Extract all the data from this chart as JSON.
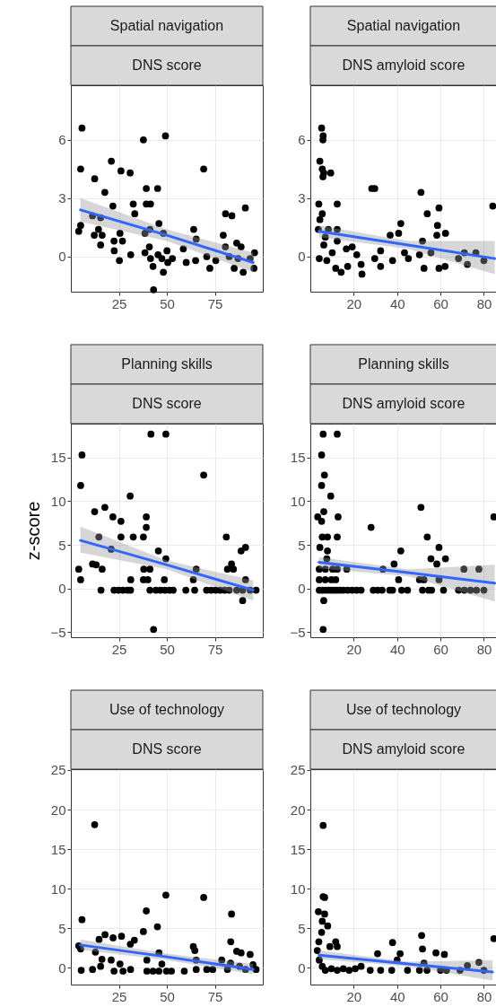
{
  "chart_data": [
    {
      "type": "scatter",
      "title": "Spatial navigation",
      "subtitle": "DNS score",
      "xlim": [
        0,
        100
      ],
      "xticks": [
        25,
        50,
        75
      ],
      "ylim": [
        -1.8,
        8.8
      ],
      "yticks": [
        0,
        3,
        6
      ],
      "grid": true,
      "series": [
        {
          "marker": "circle",
          "color": "#000000",
          "x": [
            5.8,
            5.1,
            37.8,
            49.3,
            21.1,
            12.4,
            26.1,
            30.9,
            39.3,
            45.2,
            69.2,
            17.7,
            21.9,
            32.5,
            39.3,
            41.5,
            33.3,
            11.3,
            15.5,
            80.6,
            83.9,
            90.9,
            5.1,
            4.1,
            14.4,
            12.2,
            16.3,
            25.6,
            22.5,
            26.9,
            15.5,
            22.6,
            25.3,
            31.2,
            38.6,
            41.2,
            45.9,
            48.2,
            40.9,
            38.6,
            41.5,
            42.8,
            45.4,
            47.4,
            48.2,
            50.1,
            50.5,
            52.9,
            43.1,
            58.6,
            60.1,
            64,
            65.3,
            65,
            70.8,
            72.4,
            75.5,
            79.4,
            80.5,
            86.4,
            88.7,
            85.1,
            89.8,
            93.4,
            95.4,
            95.7,
            82.5,
            87.1
          ],
          "values": [
            6.6,
            4.5,
            6,
            6.2,
            4.9,
            4,
            4.4,
            4.3,
            3.5,
            3.5,
            4.5,
            3.3,
            2.6,
            2.7,
            2.7,
            2.7,
            2.2,
            2.1,
            2,
            2.2,
            2.1,
            2.5,
            1.6,
            1.3,
            1.4,
            1.1,
            1.1,
            1.2,
            0.8,
            0.8,
            0.6,
            0.3,
            -0.2,
            0.1,
            1.2,
            1.4,
            1.7,
            1.2,
            0.5,
            0.2,
            -0.1,
            -0.5,
            0.1,
            -0.1,
            -0.8,
            0.3,
            -0.3,
            -0.1,
            -1.7,
            0.4,
            -0.3,
            1.4,
            0.9,
            -0.2,
            0,
            -0.6,
            -0.2,
            1.1,
            0.5,
            0.7,
            0.5,
            -0.6,
            -0.8,
            -0.1,
            -0.6,
            0.2,
            0,
            -0.1
          ]
        },
        {
          "type": "line",
          "color": "#3366ff",
          "x": [
            5,
            50,
            95
          ],
          "values": [
            2.4,
            1.1,
            -0.3
          ],
          "lower": [
            1.8,
            0.8,
            -0.8
          ],
          "upper": [
            3,
            1.4,
            0.2
          ]
        }
      ]
    },
    {
      "type": "scatter",
      "title": "Spatial navigation",
      "subtitle": "DNS amyloid score",
      "xlim": [
        0,
        86
      ],
      "xticks": [
        20,
        40,
        60,
        80
      ],
      "ylim": [
        -1.8,
        8.8
      ],
      "yticks": [
        0,
        3,
        6
      ],
      "grid": true,
      "series": [
        {
          "marker": "circle",
          "color": "#000000",
          "x": [
            5.2,
            5.9,
            5.8,
            4.4,
            5.5,
            6.2,
            9.4,
            5.8,
            3.9,
            12.4,
            5.5,
            4.4,
            3.7,
            8.3,
            12.4,
            6.9,
            12.4,
            6.2,
            10.1,
            4.1,
            7.6,
            11.7,
            14.2,
            17.2,
            16.6,
            19.3,
            21.4,
            23.4,
            23.8,
            28.3,
            29.7,
            36.8,
            40.7,
            41.7,
            32.4,
            29.7,
            32.4,
            37.9,
            43.4,
            45.2,
            51,
            53.9,
            59.3,
            58.6,
            58.3,
            62.3,
            51.7,
            50.3,
            55.6,
            52.4,
            59.3,
            62.1,
            68.3,
            72.4,
            71,
            76.3,
            80,
            84.1
          ],
          "values": [
            6.6,
            6.2,
            6,
            4.9,
            4.5,
            4.3,
            4.3,
            4.1,
            2.7,
            2.7,
            2.2,
            1.9,
            1.4,
            1.4,
            1.4,
            1,
            0.8,
            0.6,
            0.2,
            -0.1,
            -0.2,
            -0.6,
            -0.8,
            -0.5,
            0.4,
            0.5,
            0.1,
            -0.4,
            -0.9,
            3.5,
            3.5,
            1.1,
            1.2,
            1.7,
            0.3,
            -0.1,
            -0.5,
            -0.2,
            0.2,
            -0.1,
            3.3,
            2.2,
            2.5,
            1.6,
            1.1,
            1.2,
            0.8,
            0.1,
            0.2,
            -0.6,
            -0.6,
            -0.5,
            -0.1,
            -0.4,
            0.2,
            0.2,
            -0.2,
            2.6
          ]
        },
        {
          "type": "line",
          "color": "#3366ff",
          "x": [
            4,
            45,
            85
          ],
          "values": [
            1.3,
            0.6,
            -0.1
          ],
          "lower": [
            1,
            0.4,
            -0.9
          ],
          "upper": [
            1.6,
            0.8,
            0.8
          ]
        }
      ]
    },
    {
      "type": "scatter",
      "title": "Planning skills",
      "subtitle": "DNS score",
      "ylabel": "z-score",
      "xlim": [
        0,
        100
      ],
      "xticks": [
        25,
        50,
        75
      ],
      "ylim": [
        -5.6,
        18.9
      ],
      "yticks": [
        -5,
        0,
        5,
        10,
        15
      ],
      "grid": true,
      "series": [
        {
          "marker": "circle",
          "color": "#000000",
          "x": [
            5.8,
            5.1,
            41.7,
            49.5,
            69.2,
            12.4,
            17.7,
            21.9,
            26.1,
            30.9,
            39.3,
            39.3,
            14.6,
            26.1,
            32.5,
            37.8,
            81,
            21,
            45.6,
            49.5,
            4.1,
            11.3,
            13.2,
            16.3,
            38,
            41.2,
            65.3,
            83.7,
            81.6,
            84.7,
            88.7,
            91,
            5.1,
            31.2,
            37.8,
            40.1,
            48.7,
            63.8,
            91,
            89.5,
            43.1,
            15.7,
            22.5,
            24.8,
            27.1,
            29.5,
            31.1,
            41.2,
            44.3,
            46.7,
            49,
            51.4,
            53.3,
            59.9,
            64.5,
            70.7,
            73.1,
            75.5,
            77.8,
            80.1,
            82.5,
            86.4,
            89.5,
            93.4,
            96.5
          ],
          "values": [
            15.3,
            11.8,
            17.7,
            17.7,
            13,
            8.8,
            9.3,
            8.2,
            7.7,
            10.6,
            8.2,
            7,
            5.9,
            5.9,
            5.9,
            5.9,
            5.9,
            4.5,
            4.3,
            3.4,
            2.2,
            2.8,
            2.7,
            2.2,
            2.2,
            2.2,
            2.2,
            2.8,
            2.2,
            2.2,
            4.3,
            4.7,
            1,
            1,
            1,
            1,
            1,
            1,
            1,
            -1.4,
            -4.7,
            -0.2,
            -0.2,
            -0.2,
            -0.2,
            -0.2,
            -0.2,
            -0.2,
            -0.2,
            -0.2,
            -0.2,
            -0.2,
            -0.2,
            -0.2,
            -0.2,
            -0.2,
            -0.2,
            -0.2,
            -0.2,
            -0.2,
            -0.2,
            -0.2,
            -0.2,
            -0.2,
            -0.2
          ]
        },
        {
          "type": "line",
          "color": "#3366ff",
          "x": [
            5,
            50,
            95
          ],
          "values": [
            5.5,
            2.7,
            -0.2
          ],
          "lower": [
            4.1,
            2.2,
            -1.4
          ],
          "upper": [
            7.1,
            3.2,
            0.9
          ]
        }
      ]
    },
    {
      "type": "scatter",
      "title": "Planning skills",
      "subtitle": "DNS amyloid score",
      "xlim": [
        0,
        86
      ],
      "xticks": [
        20,
        40,
        60,
        80
      ],
      "ylim": [
        -5.6,
        18.9
      ],
      "yticks": [
        -5,
        0,
        5,
        10,
        15
      ],
      "grid": true,
      "series": [
        {
          "marker": "circle",
          "color": "#000000",
          "x": [
            5.9,
            12.4,
            5.2,
            6.5,
            5.2,
            9.4,
            3.4,
            6.2,
            5.2,
            12.8,
            5.5,
            7.9,
            12.4,
            4.4,
            7.9,
            7.6,
            4.1,
            6.9,
            10.3,
            12.4,
            16.8,
            4.1,
            6.9,
            9.7,
            11.7,
            6.2,
            5.9,
            28,
            33.5,
            38.6,
            41.7,
            40.7,
            51,
            53.9,
            59.3,
            55.6,
            58.3,
            62.3,
            50.3,
            52.4,
            59.3,
            70.8,
            77.7,
            84.6,
            4.1,
            5.5,
            6.9,
            8.3,
            9.7,
            11,
            12.4,
            13.8,
            15.2,
            17.2,
            19.3,
            21.4,
            23.4,
            29,
            31,
            33.1,
            36.6,
            37.9,
            42.1,
            44.8,
            51.7,
            54.5,
            55.9,
            61.4,
            68.3,
            71,
            73.8,
            76.6,
            80
          ],
          "values": [
            17.7,
            17.7,
            15.3,
            13,
            11.8,
            10.6,
            8.2,
            8.8,
            7.7,
            8.2,
            5.9,
            5.9,
            5.9,
            4.7,
            4.3,
            3.4,
            2.2,
            2.2,
            2.2,
            2.2,
            2.2,
            1,
            1,
            1,
            1,
            -1.4,
            -4.7,
            7,
            2.2,
            2.8,
            4.3,
            1,
            9.3,
            5.9,
            4.7,
            3.4,
            2.8,
            3.4,
            1,
            1,
            1,
            2.2,
            2.2,
            8.2,
            -0.2,
            -0.2,
            -0.2,
            -0.2,
            -0.2,
            -0.2,
            -0.2,
            -0.2,
            -0.2,
            -0.2,
            -0.2,
            -0.2,
            -0.2,
            -0.2,
            -0.2,
            -0.2,
            -0.2,
            -0.2,
            -0.2,
            -0.2,
            -0.2,
            -0.2,
            -0.2,
            -0.2,
            -0.2,
            -0.2,
            -0.2,
            -0.2,
            -0.2
          ]
        },
        {
          "type": "line",
          "color": "#3366ff",
          "x": [
            4,
            45,
            85
          ],
          "values": [
            3,
            1.8,
            0.6
          ],
          "lower": [
            2.3,
            1.4,
            -1.5
          ],
          "upper": [
            3.6,
            2.2,
            2.7
          ]
        }
      ]
    },
    {
      "type": "scatter",
      "title": "Use of technology",
      "subtitle": "DNS score",
      "xlim": [
        0,
        100
      ],
      "xticks": [
        25,
        50,
        75
      ],
      "ylim": [
        -2.1,
        25.1
      ],
      "yticks": [
        0,
        5,
        10,
        15,
        20,
        25
      ],
      "grid": true,
      "series": [
        {
          "marker": "circle",
          "color": "#000000",
          "x": [
            12.4,
            5.8,
            4.1,
            5.1,
            5.4,
            11.3,
            39.3,
            37.8,
            45.1,
            49.5,
            69.2,
            83.7,
            83.3,
            14.7,
            17.8,
            22,
            26.4,
            31,
            33.1,
            12.8,
            16.2,
            15.5,
            21,
            22.5,
            25.6,
            27.2,
            31.1,
            39.6,
            39.6,
            45.9,
            47.4,
            42.8,
            45.9,
            49.8,
            52.4,
            59.1,
            63.8,
            64.6,
            65.3,
            65.3,
            70.8,
            73.9,
            78.6,
            81.6,
            83.2,
            86.4,
            88.7,
            93.4,
            87.9,
            91,
            94.9,
            96.5
          ],
          "values": [
            18.1,
            6.1,
            2.8,
            2.4,
            -0.3,
            -0.2,
            7.2,
            4.6,
            5.2,
            9.2,
            8.9,
            6.8,
            3.3,
            3.6,
            4.2,
            3.8,
            4,
            3,
            3.5,
            2,
            1.1,
            0.2,
            1,
            -0.4,
            0.5,
            -0.4,
            -0.2,
            1,
            -0.4,
            1.9,
            0.5,
            -0.4,
            -0.4,
            -0.4,
            -0.4,
            -0.4,
            2.7,
            2.2,
            1,
            -0.2,
            -0.2,
            -0.2,
            1,
            -0.2,
            0.6,
            2.1,
            1.9,
            1.7,
            0.2,
            -0.2,
            0.4,
            -0.2
          ]
        },
        {
          "type": "line",
          "color": "#3366ff",
          "x": [
            5,
            50,
            95
          ],
          "values": [
            2.9,
            1.4,
            -0.2
          ],
          "lower": [
            2.3,
            1,
            -0.8
          ],
          "upper": [
            3.6,
            1.8,
            0.5
          ]
        }
      ]
    },
    {
      "type": "scatter",
      "title": "Use of technology",
      "subtitle": "DNS amyloid score",
      "xlim": [
        0,
        86
      ],
      "xticks": [
        20,
        40,
        60,
        80
      ],
      "ylim": [
        -2.1,
        25.1
      ],
      "yticks": [
        0,
        5,
        10,
        15,
        20,
        25
      ],
      "grid": true,
      "series": [
        {
          "marker": "circle",
          "color": "#000000",
          "x": [
            5.9,
            5.9,
            6.6,
            3.7,
            6.6,
            5.5,
            8,
            5.2,
            3.9,
            11.7,
            12.4,
            9,
            3.2,
            4.1,
            5.5,
            6.9,
            9.7,
            12.4,
            15.2,
            17.9,
            20.7,
            23.4,
            27.6,
            31,
            32.4,
            37.9,
            37.5,
            41.4,
            40,
            44.8,
            51.3,
            51.7,
            50.3,
            53.8,
            52.4,
            57.9,
            61.8,
            60,
            62.8,
            69,
            72.4,
            77.7,
            80,
            84.6
          ],
          "values": [
            18,
            9,
            8.9,
            7.1,
            6.8,
            5.9,
            5.3,
            4.5,
            3.3,
            3.3,
            2.7,
            2.7,
            2.2,
            1,
            0.2,
            -0.3,
            -0.1,
            -0.3,
            -0.1,
            -0.3,
            -0.1,
            0.2,
            -0.3,
            1.8,
            -0.3,
            3.2,
            -0.3,
            1.8,
            1,
            -0.3,
            4.1,
            2.4,
            -0.3,
            -0.3,
            0.6,
            1.9,
            1.7,
            -0.3,
            -0.3,
            -0.3,
            0.3,
            0.7,
            -0.3,
            3.7
          ]
        },
        {
          "type": "line",
          "color": "#3366ff",
          "x": [
            4,
            45,
            84
          ],
          "values": [
            1.6,
            0.5,
            -0.5
          ],
          "lower": [
            1.1,
            0.2,
            -1.6
          ],
          "upper": [
            2.2,
            0.8,
            1
          ]
        }
      ]
    }
  ]
}
